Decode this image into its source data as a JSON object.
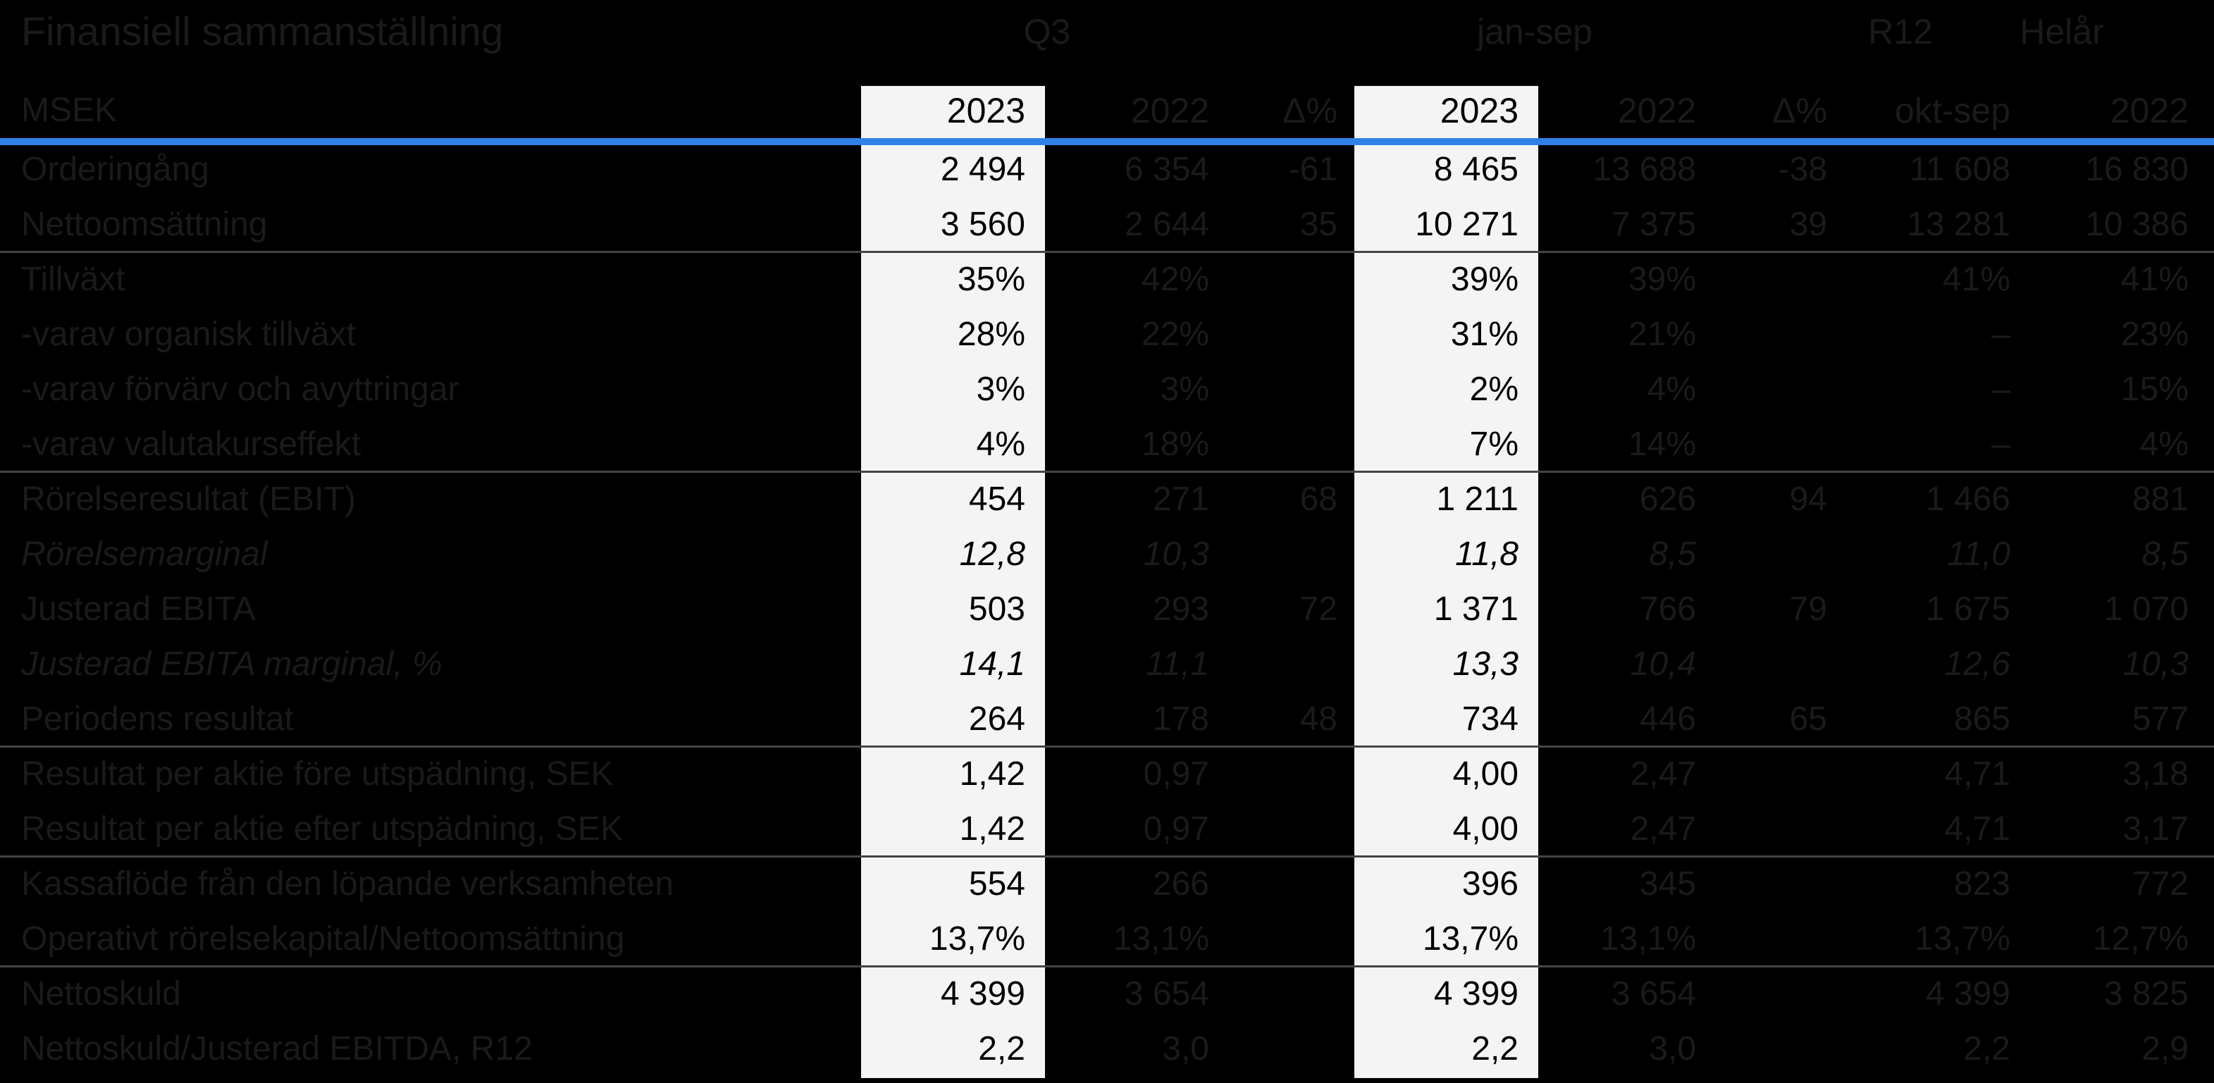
{
  "title": "Finansiell sammanställning",
  "colors": {
    "background": "#000000",
    "dim_text": "#1a1a1a",
    "accent_blue": "#2e82e8",
    "highlight_column_bg": "#f4f4f5",
    "highlight_column_text": "#000000",
    "separator_line": "#444444"
  },
  "table": {
    "unit_label": "MSEK",
    "group_headers": [
      {
        "label": "Q3"
      },
      {
        "label": "jan-sep"
      },
      {
        "label": "R12"
      },
      {
        "label": "Helår"
      }
    ],
    "column_headers": [
      "2023",
      "2022",
      "Δ%",
      "2023",
      "2022",
      "Δ%",
      "okt-sep",
      "2022"
    ],
    "column_keys": [
      "q3-2023",
      "q3-2022",
      "q3-delta-pct",
      "jansep-2023",
      "jansep-2022",
      "jansep-delta-pct",
      "r12-okt-sep",
      "helar-2022"
    ],
    "highlighted_columns": [
      "q3-2023",
      "jansep-2023"
    ],
    "rows": [
      {
        "label": "Orderingång",
        "italic": false,
        "separator_after": false,
        "values": [
          "2 494",
          "6 354",
          "-61",
          "8 465",
          "13 688",
          "-38",
          "11 608",
          "16 830"
        ]
      },
      {
        "label": "Nettoomsättning",
        "italic": false,
        "separator_after": true,
        "values": [
          "3 560",
          "2 644",
          "35",
          "10 271",
          "7 375",
          "39",
          "13 281",
          "10 386"
        ]
      },
      {
        "label": "Tillväxt",
        "italic": false,
        "separator_after": false,
        "values": [
          "35%",
          "42%",
          "",
          "39%",
          "39%",
          "",
          "41%",
          "41%"
        ]
      },
      {
        "label": "-varav organisk tillväxt",
        "italic": false,
        "separator_after": false,
        "values": [
          "28%",
          "22%",
          "",
          "31%",
          "21%",
          "",
          "–",
          "23%"
        ]
      },
      {
        "label": "-varav förvärv och avyttringar",
        "italic": false,
        "separator_after": false,
        "values": [
          "3%",
          "3%",
          "",
          "2%",
          "4%",
          "",
          "–",
          "15%"
        ]
      },
      {
        "label": "-varav valutakurseffekt",
        "italic": false,
        "separator_after": true,
        "values": [
          "4%",
          "18%",
          "",
          "7%",
          "14%",
          "",
          "–",
          "4%"
        ]
      },
      {
        "label": "Rörelseresultat (EBIT)",
        "italic": false,
        "separator_after": false,
        "values": [
          "454",
          "271",
          "68",
          "1 211",
          "626",
          "94",
          "1 466",
          "881"
        ]
      },
      {
        "label": "Rörelsemarginal",
        "italic": true,
        "separator_after": false,
        "values": [
          "12,8",
          "10,3",
          "",
          "11,8",
          "8,5",
          "",
          "11,0",
          "8,5"
        ]
      },
      {
        "label": "Justerad EBITA",
        "italic": false,
        "separator_after": false,
        "values": [
          "503",
          "293",
          "72",
          "1 371",
          "766",
          "79",
          "1 675",
          "1 070"
        ]
      },
      {
        "label": "Justerad EBITA marginal, %",
        "italic": true,
        "separator_after": false,
        "values": [
          "14,1",
          "11,1",
          "",
          "13,3",
          "10,4",
          "",
          "12,6",
          "10,3"
        ]
      },
      {
        "label": "Periodens resultat",
        "italic": false,
        "separator_after": true,
        "values": [
          "264",
          "178",
          "48",
          "734",
          "446",
          "65",
          "865",
          "577"
        ]
      },
      {
        "label": "Resultat per aktie före utspädning, SEK",
        "italic": false,
        "separator_after": false,
        "values": [
          "1,42",
          "0,97",
          "",
          "4,00",
          "2,47",
          "",
          "4,71",
          "3,18"
        ]
      },
      {
        "label": "Resultat per aktie efter utspädning, SEK",
        "italic": false,
        "separator_after": true,
        "values": [
          "1,42",
          "0,97",
          "",
          "4,00",
          "2,47",
          "",
          "4,71",
          "3,17"
        ]
      },
      {
        "label": "Kassaflöde från den löpande verksamheten",
        "italic": false,
        "separator_after": false,
        "values": [
          "554",
          "266",
          "",
          "396",
          "345",
          "",
          "823",
          "772"
        ]
      },
      {
        "label": "Operativt rörelsekapital/Nettoomsättning",
        "italic": false,
        "separator_after": true,
        "values": [
          "13,7%",
          "13,1%",
          "",
          "13,7%",
          "13,1%",
          "",
          "13,7%",
          "12,7%"
        ]
      },
      {
        "label": "Nettoskuld",
        "italic": false,
        "separator_after": false,
        "values": [
          "4 399",
          "3 654",
          "",
          "4 399",
          "3 654",
          "",
          "4 399",
          "3 825"
        ]
      },
      {
        "label": "Nettoskuld/Justerad EBITDA, R12",
        "italic": false,
        "separator_after": false,
        "values": [
          "2,2",
          "3,0",
          "",
          "2,2",
          "3,0",
          "",
          "2,2",
          "2,9"
        ]
      }
    ]
  }
}
